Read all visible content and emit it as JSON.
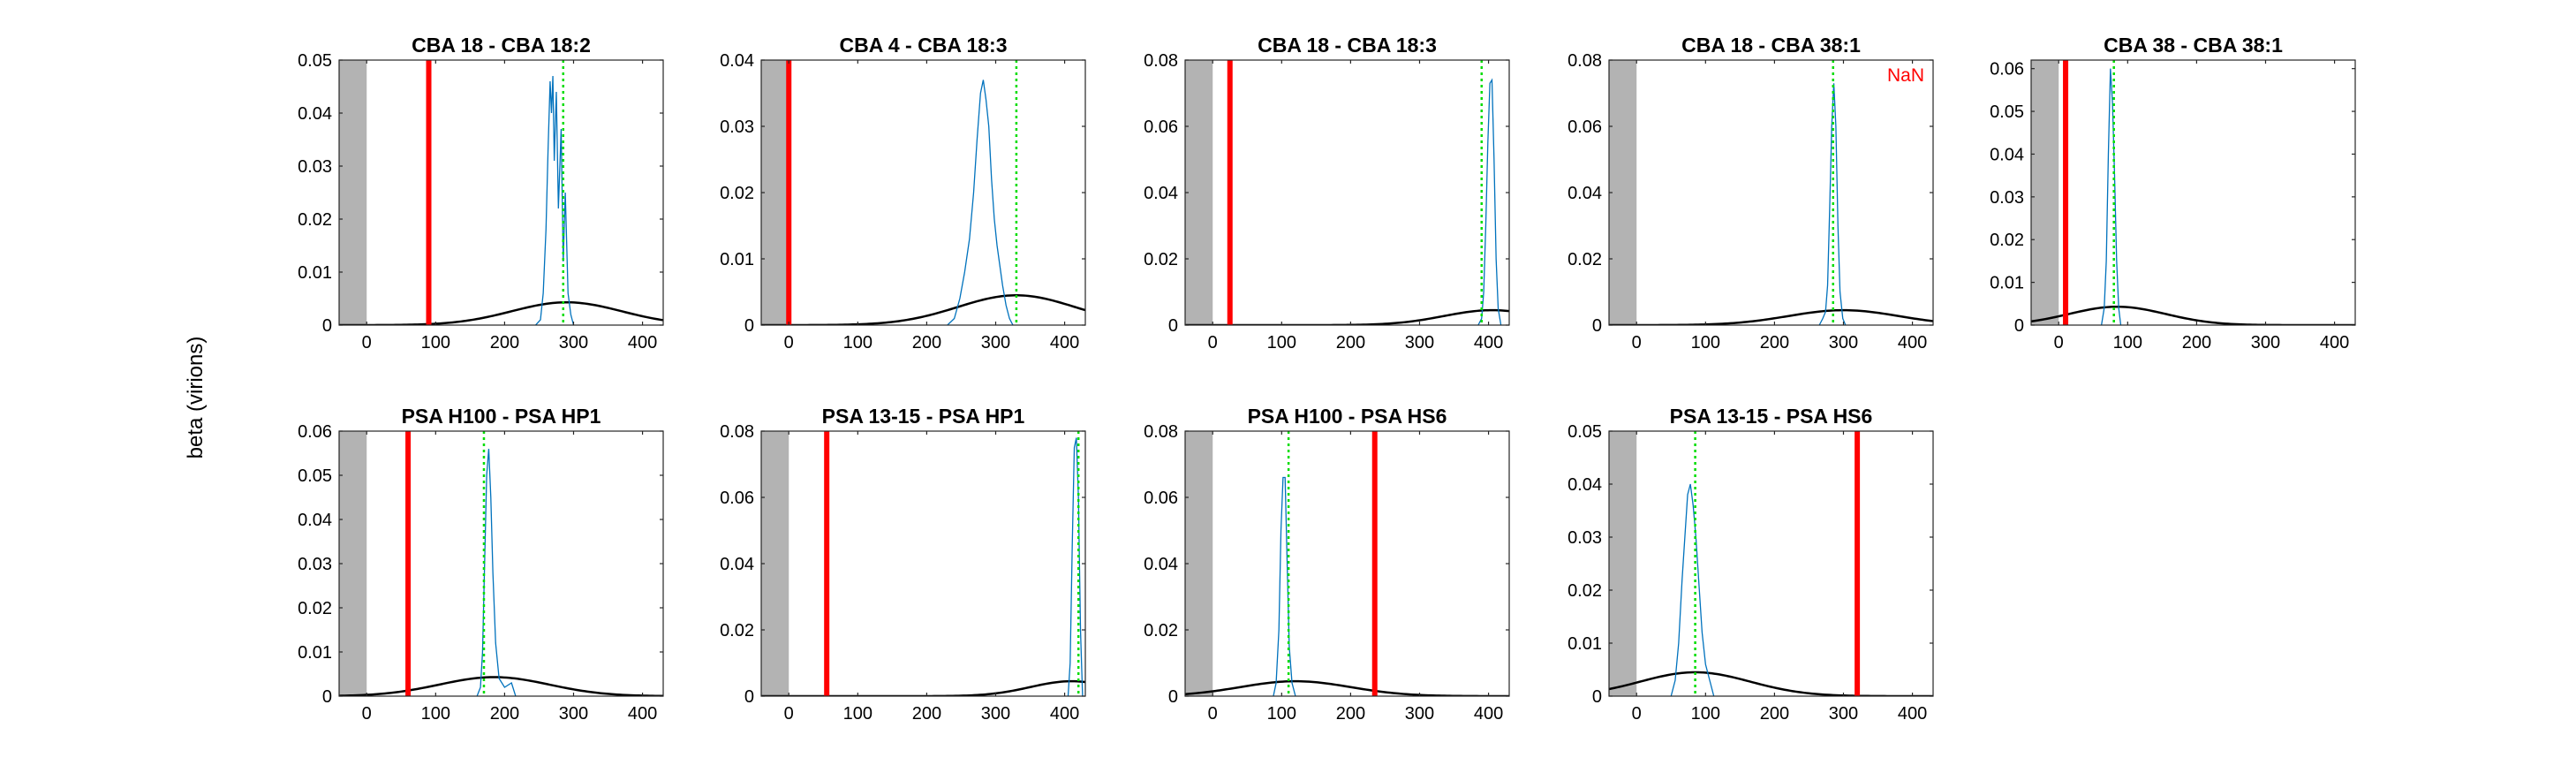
{
  "figure": {
    "ylabel": "beta (virions)"
  },
  "chart_data": [
    {
      "type": "line",
      "title": "CBA 18 - CBA 18:2",
      "xlim": [
        -40,
        430
      ],
      "ylim": [
        0,
        0.05
      ],
      "xticks": [
        0,
        100,
        200,
        300,
        400
      ],
      "yticks": [
        0,
        0.01,
        0.02,
        0.03,
        0.04,
        0.05
      ],
      "ytick_labels": [
        "0",
        "0.01",
        "0.02",
        "0.03",
        "0.04",
        "0.05"
      ],
      "shaded_region": [
        -40,
        0
      ],
      "red_line_x": 90,
      "green_dotted_x": 285,
      "annotation": "",
      "prior_curve": {
        "mu": 290,
        "sigma": 80,
        "peak": 0.0043
      },
      "histogram": [
        [
          245,
          0
        ],
        [
          252,
          0.001
        ],
        [
          256,
          0.006
        ],
        [
          260,
          0.018
        ],
        [
          263,
          0.033
        ],
        [
          266,
          0.046
        ],
        [
          268,
          0.04
        ],
        [
          270,
          0.047
        ],
        [
          272,
          0.031
        ],
        [
          275,
          0.044
        ],
        [
          278,
          0.022
        ],
        [
          282,
          0.037
        ],
        [
          285,
          0.012
        ],
        [
          288,
          0.025
        ],
        [
          292,
          0.006
        ],
        [
          296,
          0.002
        ],
        [
          300,
          0
        ]
      ],
      "series": [
        {
          "values_ref": "histogram",
          "color": "#0072BD"
        },
        {
          "values_ref": "prior_curve",
          "color": "#000000"
        }
      ]
    },
    {
      "type": "line",
      "title": "CBA 4 - CBA 18:3",
      "xlim": [
        -40,
        430
      ],
      "ylim": [
        0,
        0.04
      ],
      "xticks": [
        0,
        100,
        200,
        300,
        400
      ],
      "yticks": [
        0,
        0.01,
        0.02,
        0.03,
        0.04
      ],
      "ytick_labels": [
        "0",
        "0.01",
        "0.02",
        "0.03",
        "0.04"
      ],
      "shaded_region": [
        -40,
        0
      ],
      "red_line_x": 0,
      "green_dotted_x": 330,
      "annotation": "",
      "prior_curve": {
        "mu": 330,
        "sigma": 85,
        "peak": 0.0045
      },
      "histogram": [
        [
          230,
          0
        ],
        [
          240,
          0.001
        ],
        [
          248,
          0.004
        ],
        [
          255,
          0.008
        ],
        [
          262,
          0.013
        ],
        [
          268,
          0.02
        ],
        [
          273,
          0.028
        ],
        [
          278,
          0.035
        ],
        [
          282,
          0.037
        ],
        [
          286,
          0.034
        ],
        [
          290,
          0.03
        ],
        [
          294,
          0.022
        ],
        [
          298,
          0.016
        ],
        [
          302,
          0.012
        ],
        [
          306,
          0.009
        ],
        [
          310,
          0.006
        ],
        [
          315,
          0.003
        ],
        [
          320,
          0.001
        ],
        [
          325,
          0
        ]
      ],
      "series": [
        {
          "values_ref": "histogram",
          "color": "#0072BD"
        },
        {
          "values_ref": "prior_curve",
          "color": "#000000"
        }
      ]
    },
    {
      "type": "line",
      "title": "CBA 18 - CBA 18:3",
      "xlim": [
        -40,
        430
      ],
      "ylim": [
        0,
        0.08
      ],
      "xticks": [
        0,
        100,
        200,
        300,
        400
      ],
      "yticks": [
        0,
        0.02,
        0.04,
        0.06,
        0.08
      ],
      "ytick_labels": [
        "0",
        "0.02",
        "0.04",
        "0.06",
        "0.08"
      ],
      "shaded_region": [
        -40,
        0
      ],
      "red_line_x": 25,
      "green_dotted_x": 390,
      "annotation": "",
      "prior_curve": {
        "mu": 405,
        "sigma": 70,
        "peak": 0.0045
      },
      "histogram": [
        [
          385,
          0
        ],
        [
          390,
          0.002
        ],
        [
          393,
          0.01
        ],
        [
          396,
          0.03
        ],
        [
          399,
          0.055
        ],
        [
          402,
          0.073
        ],
        [
          405,
          0.074
        ],
        [
          408,
          0.05
        ],
        [
          411,
          0.02
        ],
        [
          414,
          0.005
        ],
        [
          418,
          0
        ]
      ],
      "series": [
        {
          "values_ref": "histogram",
          "color": "#0072BD"
        },
        {
          "values_ref": "prior_curve",
          "color": "#000000"
        }
      ]
    },
    {
      "type": "line",
      "title": "CBA 18 - CBA 38:1",
      "xlim": [
        -40,
        430
      ],
      "ylim": [
        0,
        0.08
      ],
      "xticks": [
        0,
        100,
        200,
        300,
        400
      ],
      "yticks": [
        0,
        0.02,
        0.04,
        0.06,
        0.08
      ],
      "ytick_labels": [
        "0",
        "0.02",
        "0.04",
        "0.06",
        "0.08"
      ],
      "shaded_region": [
        -40,
        0
      ],
      "red_line_x": null,
      "green_dotted_x": 285,
      "annotation": "NaN",
      "prior_curve": {
        "mu": 300,
        "sigma": 80,
        "peak": 0.0045
      },
      "histogram": [
        [
          265,
          0
        ],
        [
          270,
          0.002
        ],
        [
          274,
          0.004
        ],
        [
          277,
          0.012
        ],
        [
          280,
          0.035
        ],
        [
          283,
          0.06
        ],
        [
          286,
          0.073
        ],
        [
          289,
          0.06
        ],
        [
          292,
          0.03
        ],
        [
          295,
          0.01
        ],
        [
          299,
          0.002
        ],
        [
          303,
          0
        ]
      ],
      "series": [
        {
          "values_ref": "histogram",
          "color": "#0072BD"
        },
        {
          "values_ref": "prior_curve",
          "color": "#000000"
        }
      ]
    },
    {
      "type": "line",
      "title": "CBA 38 - CBA 38:1",
      "xlim": [
        -40,
        430
      ],
      "ylim": [
        0,
        0.062
      ],
      "xticks": [
        0,
        100,
        200,
        300,
        400
      ],
      "yticks": [
        0,
        0.01,
        0.02,
        0.03,
        0.04,
        0.05,
        0.06
      ],
      "ytick_labels": [
        "0",
        "0.01",
        "0.02",
        "0.03",
        "0.04",
        "0.05",
        "0.06"
      ],
      "shaded_region": [
        -40,
        0
      ],
      "red_line_x": 10,
      "green_dotted_x": 80,
      "annotation": "",
      "prior_curve": {
        "mu": 85,
        "sigma": 70,
        "peak": 0.0043
      },
      "histogram": [
        [
          62,
          0
        ],
        [
          66,
          0.004
        ],
        [
          69,
          0.015
        ],
        [
          72,
          0.04
        ],
        [
          75,
          0.06
        ],
        [
          78,
          0.052
        ],
        [
          81,
          0.035
        ],
        [
          84,
          0.015
        ],
        [
          87,
          0.004
        ],
        [
          90,
          0
        ]
      ],
      "series": [
        {
          "values_ref": "histogram",
          "color": "#0072BD"
        },
        {
          "values_ref": "prior_curve",
          "color": "#000000"
        }
      ]
    },
    {
      "type": "line",
      "title": "PSA H100 - PSA HP1",
      "xlim": [
        -40,
        430
      ],
      "ylim": [
        0,
        0.06
      ],
      "xticks": [
        0,
        100,
        200,
        300,
        400
      ],
      "yticks": [
        0,
        0.01,
        0.02,
        0.03,
        0.04,
        0.05,
        0.06
      ],
      "ytick_labels": [
        "0",
        "0.01",
        "0.02",
        "0.03",
        "0.04",
        "0.05",
        "0.06"
      ],
      "shaded_region": [
        -40,
        0
      ],
      "red_line_x": 60,
      "green_dotted_x": 170,
      "annotation": "",
      "prior_curve": {
        "mu": 185,
        "sigma": 80,
        "peak": 0.0043
      },
      "histogram": [
        [
          160,
          0
        ],
        [
          165,
          0.002
        ],
        [
          168,
          0.01
        ],
        [
          171,
          0.03
        ],
        [
          174,
          0.05
        ],
        [
          177,
          0.056
        ],
        [
          180,
          0.045
        ],
        [
          183,
          0.028
        ],
        [
          187,
          0.012
        ],
        [
          192,
          0.004
        ],
        [
          200,
          0.002
        ],
        [
          210,
          0.003
        ],
        [
          216,
          0
        ]
      ],
      "series": [
        {
          "values_ref": "histogram",
          "color": "#0072BD"
        },
        {
          "values_ref": "prior_curve",
          "color": "#000000"
        }
      ]
    },
    {
      "type": "line",
      "title": "PSA 13-15 - PSA HP1",
      "xlim": [
        -40,
        430
      ],
      "ylim": [
        0,
        0.08
      ],
      "xticks": [
        0,
        100,
        200,
        300,
        400
      ],
      "yticks": [
        0,
        0.02,
        0.04,
        0.06,
        0.08
      ],
      "ytick_labels": [
        "0",
        "0.02",
        "0.04",
        "0.06",
        "0.08"
      ],
      "shaded_region": [
        -40,
        0
      ],
      "red_line_x": 55,
      "green_dotted_x": 420,
      "annotation": "",
      "prior_curve": {
        "mu": 410,
        "sigma": 60,
        "peak": 0.0045
      },
      "histogram": [
        [
          405,
          0
        ],
        [
          408,
          0.01
        ],
        [
          411,
          0.045
        ],
        [
          414,
          0.075
        ],
        [
          417,
          0.078
        ],
        [
          420,
          0.06
        ],
        [
          423,
          0.02
        ],
        [
          426,
          0
        ]
      ],
      "series": [
        {
          "values_ref": "histogram",
          "color": "#0072BD"
        },
        {
          "values_ref": "prior_curve",
          "color": "#000000"
        }
      ]
    },
    {
      "type": "line",
      "title": "PSA H100 - PSA HS6",
      "xlim": [
        -40,
        430
      ],
      "ylim": [
        0,
        0.08
      ],
      "xticks": [
        0,
        100,
        200,
        300,
        400
      ],
      "yticks": [
        0,
        0.02,
        0.04,
        0.06,
        0.08
      ],
      "ytick_labels": [
        "0",
        "0.02",
        "0.04",
        "0.06",
        "0.08"
      ],
      "shaded_region": [
        -40,
        0
      ],
      "red_line_x": 235,
      "green_dotted_x": 110,
      "annotation": "",
      "prior_curve": {
        "mu": 120,
        "sigma": 80,
        "peak": 0.0045
      },
      "histogram": [
        [
          88,
          0
        ],
        [
          92,
          0.004
        ],
        [
          96,
          0.02
        ],
        [
          99,
          0.05
        ],
        [
          102,
          0.066
        ],
        [
          105,
          0.066
        ],
        [
          108,
          0.04
        ],
        [
          111,
          0.015
        ],
        [
          115,
          0.004
        ],
        [
          120,
          0
        ]
      ],
      "series": [
        {
          "values_ref": "histogram",
          "color": "#0072BD"
        },
        {
          "values_ref": "prior_curve",
          "color": "#000000"
        }
      ]
    },
    {
      "type": "line",
      "title": "PSA 13-15 - PSA HS6",
      "xlim": [
        -40,
        430
      ],
      "ylim": [
        0,
        0.05
      ],
      "xticks": [
        0,
        100,
        200,
        300,
        400
      ],
      "yticks": [
        0,
        0.01,
        0.02,
        0.03,
        0.04,
        0.05
      ],
      "ytick_labels": [
        "0",
        "0.01",
        "0.02",
        "0.03",
        "0.04",
        "0.05"
      ],
      "shaded_region": [
        -40,
        0
      ],
      "red_line_x": 320,
      "green_dotted_x": 85,
      "annotation": "",
      "prior_curve": {
        "mu": 85,
        "sigma": 80,
        "peak": 0.0045
      },
      "histogram": [
        [
          50,
          0
        ],
        [
          56,
          0.003
        ],
        [
          61,
          0.01
        ],
        [
          66,
          0.022
        ],
        [
          70,
          0.03
        ],
        [
          74,
          0.038
        ],
        [
          78,
          0.04
        ],
        [
          82,
          0.036
        ],
        [
          86,
          0.03
        ],
        [
          90,
          0.022
        ],
        [
          95,
          0.012
        ],
        [
          100,
          0.006
        ],
        [
          106,
          0.003
        ],
        [
          112,
          0
        ]
      ],
      "series": [
        {
          "values_ref": "histogram",
          "color": "#0072BD"
        },
        {
          "values_ref": "prior_curve",
          "color": "#000000"
        }
      ]
    }
  ]
}
